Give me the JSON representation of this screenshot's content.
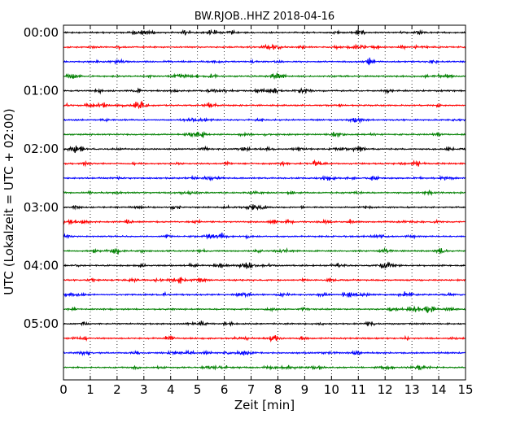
{
  "chart_data": {
    "type": "line",
    "title": "BW.RJOB..HHZ 2018-04-16",
    "xlabel": "Zeit  [min]",
    "ylabel": "UTC (Lokalzeit = UTC + 02:00)",
    "xlim": [
      0,
      15
    ],
    "x_ticks": [
      "0",
      "1",
      "2",
      "3",
      "4",
      "5",
      "6",
      "7",
      "8",
      "9",
      "10",
      "11",
      "12",
      "13",
      "14",
      "15"
    ],
    "y_tick_labels": [
      "00:00",
      "01:00",
      "02:00",
      "03:00",
      "04:00",
      "05:00"
    ],
    "traces_per_hour": 4,
    "trace_minutes": 15,
    "trace_colors": [
      "#000000",
      "#ff0000",
      "#0000ff",
      "#008000"
    ],
    "trace_count": 24,
    "vertical_grid": "dotted",
    "legend": "none"
  }
}
